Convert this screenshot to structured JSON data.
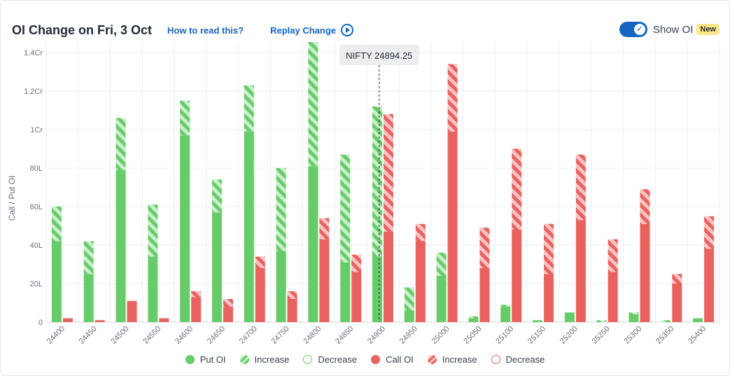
{
  "header": {
    "title": "OI Change on Fri, 3 Oct",
    "how_to_read": "How to read this?",
    "replay": "Replay Change",
    "show_oi": "Show OI",
    "new_badge": "New"
  },
  "colors": {
    "put": "#66cc6a",
    "put_stripe": "#c9efcb",
    "call": "#e8625f",
    "call_stripe": "#f8c4c3",
    "grid": "#eeeeee",
    "accent": "#1565c0"
  },
  "legend": [
    {
      "key": "put",
      "label": "Put OI"
    },
    {
      "key": "put-inc",
      "label": "Increase"
    },
    {
      "key": "put-dec",
      "label": "Decrease"
    },
    {
      "key": "call",
      "label": "Call OI"
    },
    {
      "key": "call-inc",
      "label": "Increase"
    },
    {
      "key": "call-dec",
      "label": "Decrease"
    }
  ],
  "chart_data": {
    "type": "bar",
    "ylabel": "Call / Put OI",
    "unit": "L",
    "ylim": [
      0,
      140
    ],
    "yticks": [
      0,
      20,
      40,
      60,
      80,
      100,
      120,
      140
    ],
    "ytick_labels": [
      "0",
      "20L",
      "40L",
      "60L",
      "80L",
      "1Cr",
      "1.2Cr",
      "1.4Cr"
    ],
    "spot_label": "NIFTY 24894.25",
    "spot_value": 24894.25,
    "categories": [
      "24400",
      "24450",
      "24500",
      "24550",
      "24600",
      "24650",
      "24700",
      "24750",
      "24800",
      "24850",
      "24900",
      "24950",
      "25000",
      "25050",
      "25100",
      "25150",
      "25200",
      "25250",
      "25300",
      "25350",
      "25400"
    ],
    "series": [
      {
        "name": "Put OI",
        "base": [
          42,
          25,
          79,
          34,
          97,
          57,
          99,
          37,
          81,
          31,
          34,
          6,
          24,
          2,
          8,
          1,
          5,
          0,
          4,
          0,
          2
        ],
        "total": [
          60,
          42,
          106,
          61,
          115,
          74,
          123,
          80,
          155,
          87,
          112,
          18,
          36,
          3,
          9,
          1,
          5,
          1,
          5,
          1,
          2
        ]
      },
      {
        "name": "Call OI",
        "base": [
          2,
          1,
          11,
          2,
          13,
          8,
          28,
          12,
          43,
          26,
          47,
          42,
          99,
          28,
          48,
          25,
          53,
          26,
          51,
          20,
          38
        ],
        "total": [
          2,
          1,
          11,
          2,
          16,
          12,
          34,
          16,
          54,
          35,
          108,
          51,
          134,
          49,
          90,
          51,
          87,
          43,
          69,
          25,
          55
        ]
      }
    ]
  }
}
